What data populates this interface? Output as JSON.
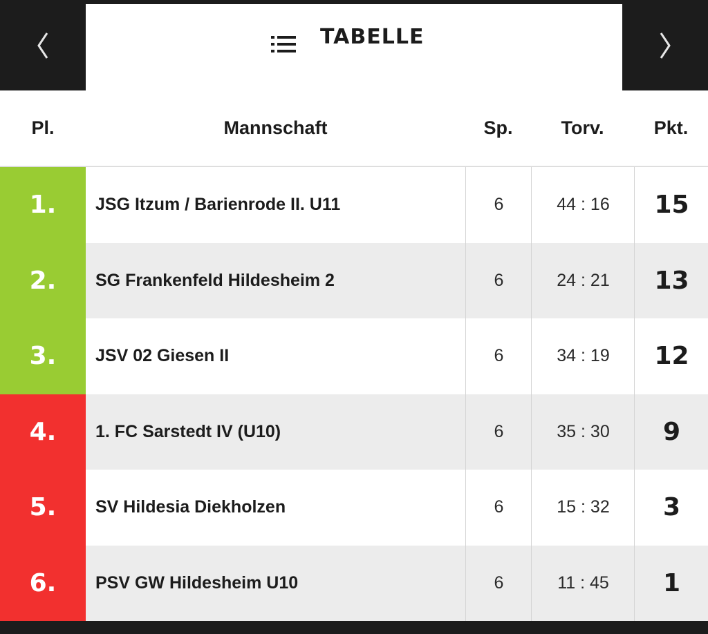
{
  "header": {
    "title": "TABELLE",
    "prev_icon": "chevron-left-icon",
    "next_icon": "chevron-right-icon",
    "menu_icon": "list-icon"
  },
  "columns": {
    "place": "Pl.",
    "team": "Mannschaft",
    "played": "Sp.",
    "goals": "Torv.",
    "points": "Pkt."
  },
  "colors": {
    "promotion": "#99cc33",
    "relegation": "#f2302f",
    "dark": "#1c1c1c"
  },
  "rows": [
    {
      "place": "1.",
      "team": "JSG Itzum / Barienrode II. U11",
      "played": "6",
      "goals": "44 : 16",
      "points": "15",
      "zone": "promotion"
    },
    {
      "place": "2.",
      "team": "SG Frankenfeld Hildesheim 2",
      "played": "6",
      "goals": "24 : 21",
      "points": "13",
      "zone": "promotion"
    },
    {
      "place": "3.",
      "team": "JSV 02 Giesen II",
      "played": "6",
      "goals": "34 : 19",
      "points": "12",
      "zone": "promotion"
    },
    {
      "place": "4.",
      "team": "1. FC Sarstedt IV (U10)",
      "played": "6",
      "goals": "35 : 30",
      "points": "9",
      "zone": "relegation"
    },
    {
      "place": "5.",
      "team": "SV Hildesia Diekholzen",
      "played": "6",
      "goals": "15 : 32",
      "points": "3",
      "zone": "relegation"
    },
    {
      "place": "6.",
      "team": "PSV GW Hildesheim U10",
      "played": "6",
      "goals": "11 : 45",
      "points": "1",
      "zone": "relegation"
    }
  ]
}
